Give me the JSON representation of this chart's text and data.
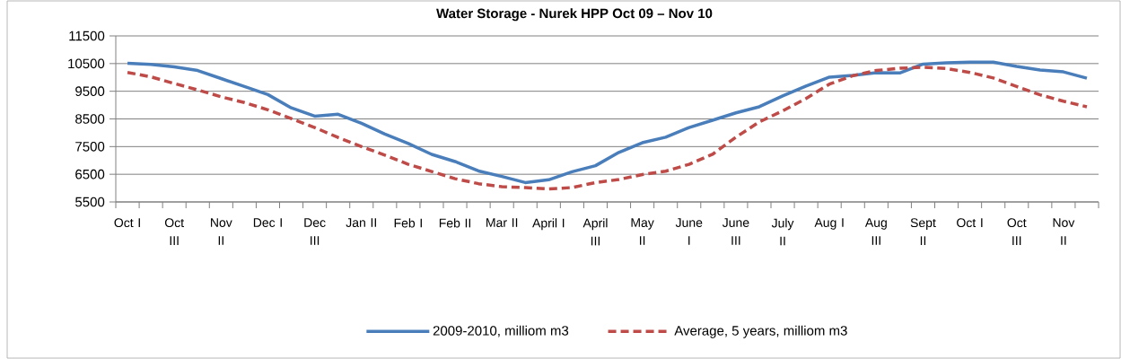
{
  "chart_data": {
    "type": "line",
    "title": "Water Storage - Nurek HPP Oct 09 – Nov 10",
    "categories": [
      "Oct I",
      null,
      "Oct III",
      null,
      "Nov II",
      null,
      "Dec I",
      null,
      "Dec III",
      null,
      "Jan II",
      null,
      "Feb I",
      null,
      "Feb II",
      null,
      "Mar II",
      null,
      "April I",
      null,
      "April III",
      null,
      "May II",
      null,
      "June I",
      null,
      "June III",
      null,
      "July II",
      null,
      "Aug I",
      null,
      "Aug III",
      null,
      "Sept II",
      null,
      "Oct I",
      null,
      "Oct III",
      null,
      "Nov II",
      null
    ],
    "series": [
      {
        "name": "2009-2010, milliom m3",
        "color": "#4a7ebb",
        "line_style": "solid",
        "values": [
          10510,
          10470,
          10380,
          10250,
          9960,
          9670,
          9380,
          8900,
          8600,
          8670,
          8340,
          7950,
          7610,
          7220,
          6960,
          6620,
          6420,
          6200,
          6300,
          6590,
          6810,
          7290,
          7640,
          7840,
          8190,
          8450,
          8720,
          8940,
          9330,
          9690,
          10010,
          10070,
          10170,
          10160,
          10480,
          10530,
          10550,
          10550,
          10400,
          10270,
          10200,
          9970
        ]
      },
      {
        "name": "Average, 5 years, milliom m3",
        "color": "#be4b48",
        "line_style": "dashed",
        "values": [
          10180,
          10020,
          9780,
          9550,
          9300,
          9090,
          8830,
          8510,
          8190,
          7830,
          7500,
          7190,
          6860,
          6600,
          6340,
          6160,
          6050,
          6020,
          5970,
          6020,
          6200,
          6310,
          6490,
          6610,
          6860,
          7220,
          7840,
          8390,
          8790,
          9240,
          9760,
          10060,
          10250,
          10330,
          10370,
          10320,
          10180,
          9980,
          9670,
          9370,
          9140,
          8940
        ]
      }
    ],
    "ylim": [
      5500,
      11500
    ],
    "yticks": [
      5500,
      6500,
      7500,
      8500,
      9500,
      10500,
      11500
    ],
    "grid": "y",
    "legend": "bottom",
    "marker": "none"
  }
}
